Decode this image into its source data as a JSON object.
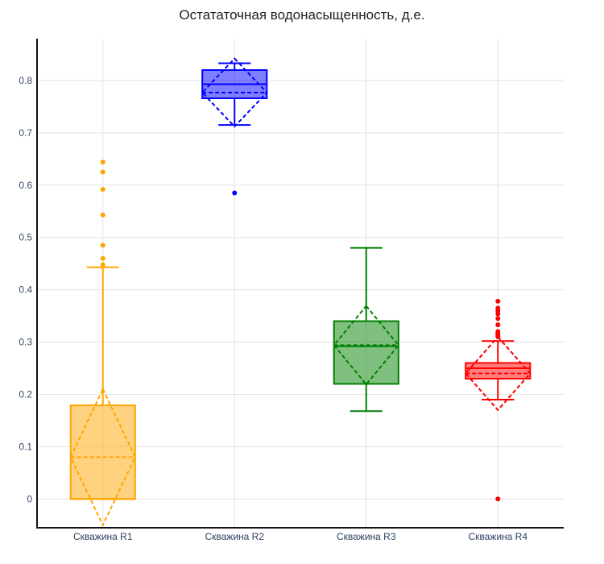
{
  "chart_data": {
    "type": "box",
    "title": "Остататочная водонасыщенность, д.е.",
    "xlabel": "",
    "ylabel": "",
    "ylim": [
      -0.055,
      0.88
    ],
    "yticks": [
      0,
      0.1,
      0.2,
      0.3,
      0.4,
      0.5,
      0.6,
      0.7,
      0.8
    ],
    "ytick_labels": [
      "0",
      "0.1",
      "0.2",
      "0.3",
      "0.4",
      "0.5",
      "0.6",
      "0.7",
      "0.8"
    ],
    "grid": true,
    "legend": "none",
    "boxmean": "sd",
    "series": [
      {
        "name": "Скважина R1",
        "color": "#ffa500",
        "fill": "rgba(255,165,0,0.5)",
        "lower_whisker": 0.0,
        "q1": 0.0,
        "median": 0.0,
        "q3": 0.179,
        "upper_whisker": 0.443,
        "mean": 0.08,
        "sd": 0.13,
        "outliers": [
          0.448,
          0.46,
          0.485,
          0.543,
          0.592,
          0.625,
          0.644
        ]
      },
      {
        "name": "Скважина R2",
        "color": "#0000ff",
        "fill": "rgba(0,0,255,0.5)",
        "lower_whisker": 0.715,
        "q1": 0.766,
        "median": 0.793,
        "q3": 0.82,
        "upper_whisker": 0.833,
        "mean": 0.777,
        "sd": 0.065,
        "outliers": [
          0.585
        ]
      },
      {
        "name": "Скважина R3",
        "color": "#008000",
        "fill": "rgba(0,128,0,0.5)",
        "lower_whisker": 0.168,
        "q1": 0.22,
        "median": 0.292,
        "q3": 0.34,
        "upper_whisker": 0.48,
        "mean": 0.294,
        "sd": 0.075,
        "outliers": []
      },
      {
        "name": "Скважина R4",
        "color": "#ff0000",
        "fill": "rgba(255,0,0,0.5)",
        "lower_whisker": 0.19,
        "q1": 0.23,
        "median": 0.25,
        "q3": 0.26,
        "upper_whisker": 0.302,
        "mean": 0.24,
        "sd": 0.07,
        "outliers": [
          0.0,
          0.31,
          0.313,
          0.316,
          0.32,
          0.333,
          0.345,
          0.354,
          0.36,
          0.365,
          0.378
        ]
      }
    ]
  }
}
